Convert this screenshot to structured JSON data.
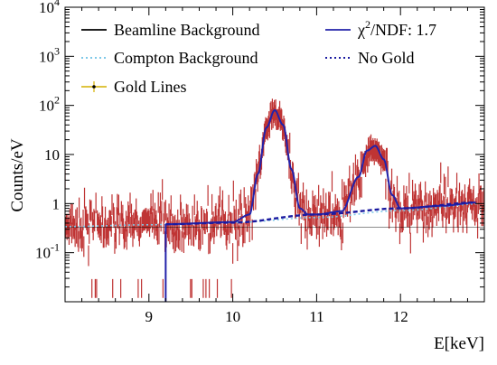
{
  "chart_data": {
    "type": "line",
    "xlabel": "E[keV]",
    "ylabel": "Counts/eV",
    "xlim": [
      8.0,
      13.0
    ],
    "ylim": [
      0.01,
      10000
    ],
    "yscale": "log",
    "grid": false,
    "legend_placement": "top",
    "x_ticks": [
      9,
      10,
      11,
      12
    ],
    "x_tick_labels": [
      "9",
      "10",
      "11",
      "12"
    ],
    "y_ticks": [
      0.1,
      1,
      10,
      100,
      1000,
      10000
    ],
    "y_tick_labels": [
      {
        "base": "10",
        "exp": "-1"
      },
      {
        "base": "1",
        "exp": ""
      },
      {
        "base": "10",
        "exp": ""
      },
      {
        "base": "10",
        "exp": "2"
      },
      {
        "base": "10",
        "exp": "3"
      },
      {
        "base": "10",
        "exp": "4"
      }
    ],
    "legend": [
      {
        "label": "Beamline Background",
        "color": "#000000",
        "style": "solid"
      },
      {
        "label_main": "χ",
        "label_sup": "2",
        "label_rest": "/NDF: 1.7",
        "color": "#2222aa",
        "style": "solid"
      },
      {
        "label": "Compton Background",
        "color": "#7ec8e8",
        "style": "dotted"
      },
      {
        "label": "No Gold",
        "color": "#1a1aa0",
        "style": "dotted"
      },
      {
        "label": "Gold Lines",
        "color": "#d4b000",
        "style": "marker"
      }
    ],
    "series": [
      {
        "name": "Beamline Background",
        "color": "#000000",
        "x": [
          8.0,
          13.0
        ],
        "y": [
          0.33,
          0.33
        ]
      },
      {
        "name": "Compton Background",
        "color": "#7ec8e8",
        "x": [
          8.0,
          9.0,
          10.0,
          11.0,
          12.0,
          13.0
        ],
        "y": [
          0.34,
          0.37,
          0.41,
          0.52,
          0.72,
          1.0
        ]
      },
      {
        "name": "No Gold",
        "color": "#1a1aa0",
        "x": [
          9.2,
          10.0,
          11.0,
          12.0,
          12.9
        ],
        "y": [
          0.38,
          0.41,
          0.6,
          0.8,
          1.05
        ]
      },
      {
        "name": "χ2/NDF: 1.7",
        "color": "#2222aa",
        "x": [
          9.2,
          10.0,
          10.2,
          10.3,
          10.4,
          10.5,
          10.6,
          10.7,
          10.8,
          10.9,
          11.0,
          11.3,
          11.5,
          11.6,
          11.7,
          11.8,
          11.9,
          12.0,
          12.5,
          12.9
        ],
        "y": [
          0.38,
          0.42,
          0.6,
          4.0,
          35,
          80,
          40,
          5,
          0.8,
          0.6,
          0.6,
          0.7,
          3.5,
          12,
          15,
          8,
          1.5,
          0.8,
          0.9,
          1.05
        ]
      },
      {
        "name": "Gold Lines",
        "color": "#b81e1e",
        "x": [
          8.0,
          9.0,
          10.0,
          10.5,
          11.0,
          11.7,
          12.0,
          13.0
        ],
        "y": [
          0.4,
          0.4,
          0.45,
          80,
          0.6,
          15,
          0.8,
          1.1
        ]
      }
    ]
  }
}
